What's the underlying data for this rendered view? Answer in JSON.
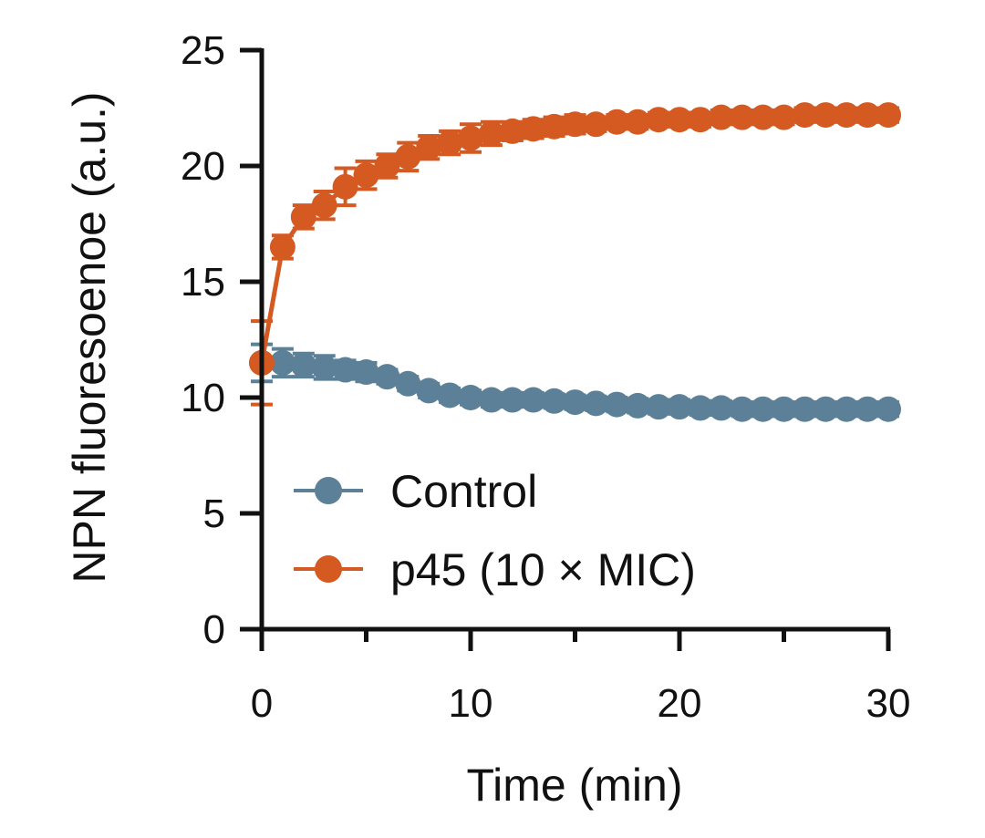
{
  "chart_data": {
    "type": "line",
    "title": "",
    "xlabel": "Time (min)",
    "ylabel": "NPN fluoresoenoe (a.u.)",
    "xlim": [
      0,
      30
    ],
    "ylim": [
      0,
      25
    ],
    "xticks": [
      0,
      10,
      20,
      30
    ],
    "xtick_labels": [
      "0",
      "10",
      "20",
      "30"
    ],
    "xminor": [
      5,
      15,
      25
    ],
    "yticks": [
      0,
      5,
      10,
      15,
      20,
      25
    ],
    "ytick_labels": [
      "0",
      "5",
      "10",
      "15",
      "20",
      "25"
    ],
    "grid": false,
    "legend_position": "bottom-left",
    "x": [
      0,
      1,
      2,
      3,
      4,
      5,
      6,
      7,
      8,
      9,
      10,
      11,
      12,
      13,
      14,
      15,
      16,
      17,
      18,
      19,
      20,
      21,
      22,
      23,
      24,
      25,
      26,
      27,
      28,
      29,
      30
    ],
    "series": [
      {
        "name": "Control",
        "color": "#5b8097",
        "values": [
          11.5,
          11.5,
          11.4,
          11.3,
          11.2,
          11.1,
          10.9,
          10.6,
          10.3,
          10.1,
          10.0,
          9.9,
          9.9,
          9.9,
          9.85,
          9.8,
          9.75,
          9.7,
          9.65,
          9.6,
          9.6,
          9.55,
          9.55,
          9.5,
          9.5,
          9.5,
          9.5,
          9.5,
          9.5,
          9.5,
          9.5
        ],
        "error": [
          0.8,
          0.6,
          0.5,
          0.5,
          0.4,
          0.4,
          0.3,
          0.3,
          0.3,
          0.3,
          0.3,
          0.3,
          0.3,
          0.3,
          0.3,
          0.3,
          0.3,
          0.3,
          0.3,
          0.3,
          0.3,
          0.3,
          0.3,
          0.3,
          0.3,
          0.3,
          0.3,
          0.3,
          0.3,
          0.3,
          0.3
        ]
      },
      {
        "name": "p45 (10 × MIC)",
        "color": "#d45a22",
        "values": [
          11.5,
          16.5,
          17.8,
          18.3,
          19.1,
          19.6,
          20.0,
          20.4,
          20.8,
          21.0,
          21.2,
          21.4,
          21.5,
          21.6,
          21.7,
          21.8,
          21.8,
          21.9,
          21.9,
          22.0,
          22.0,
          22.0,
          22.1,
          22.1,
          22.1,
          22.1,
          22.2,
          22.2,
          22.2,
          22.2,
          22.2
        ],
        "error": [
          1.8,
          0.5,
          0.5,
          0.6,
          0.8,
          0.6,
          0.5,
          0.6,
          0.5,
          0.5,
          0.6,
          0.5,
          0.4,
          0.4,
          0.4,
          0.4,
          0.3,
          0.3,
          0.3,
          0.3,
          0.3,
          0.3,
          0.3,
          0.3,
          0.3,
          0.3,
          0.3,
          0.3,
          0.3,
          0.3,
          0.3
        ]
      }
    ]
  }
}
